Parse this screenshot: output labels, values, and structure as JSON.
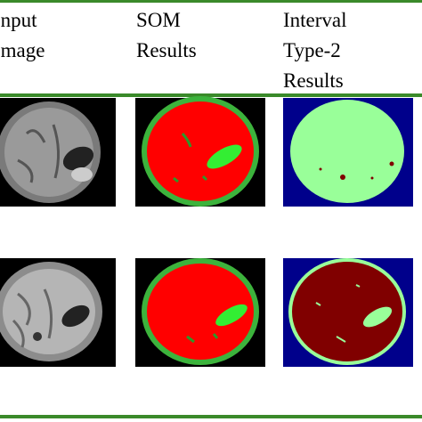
{
  "header": {
    "columns": [
      {
        "lines": [
          "Input",
          "Image"
        ]
      },
      {
        "lines": [
          "SOM",
          "Results"
        ]
      },
      {
        "lines": [
          "Interval",
          "Type-2",
          "Results"
        ]
      }
    ]
  }
}
